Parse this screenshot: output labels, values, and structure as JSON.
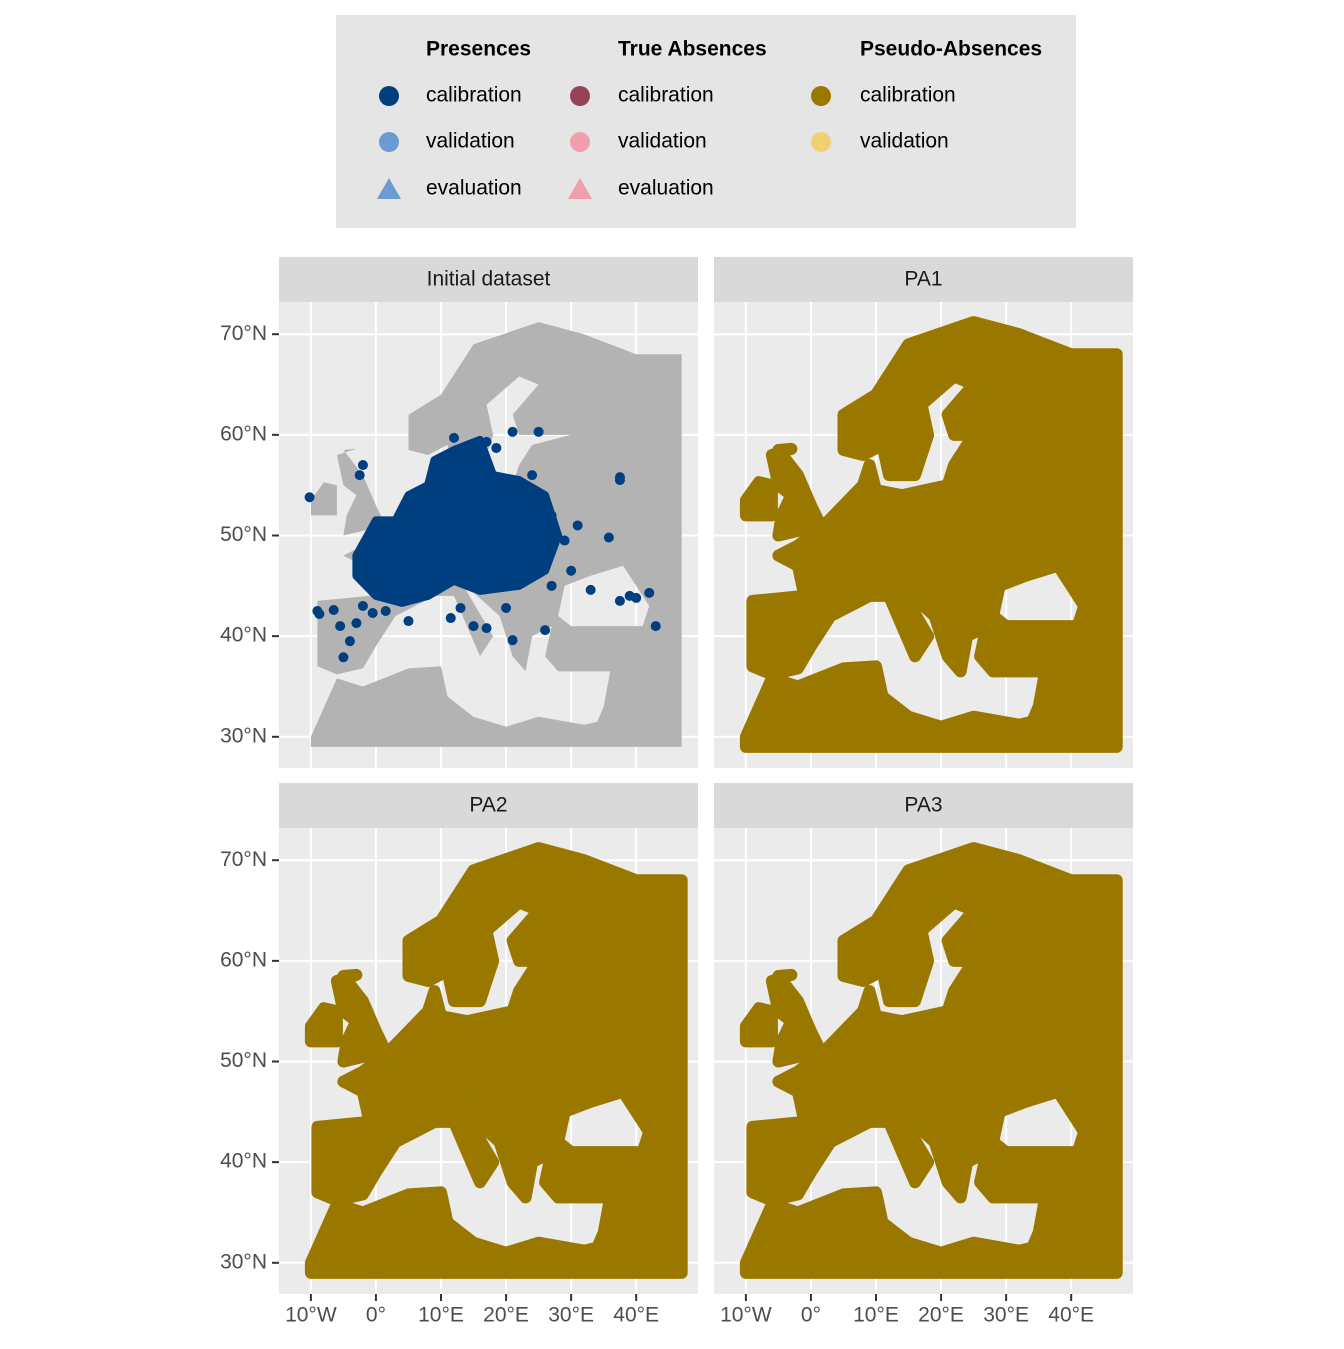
{
  "chart_data": {
    "type": "map",
    "legend": [
      {
        "title": "Presences",
        "entries": [
          {
            "label": "calibration",
            "color": "#003f7f",
            "shape": "circle"
          },
          {
            "label": "validation",
            "color": "#6b9bd1",
            "shape": "circle"
          },
          {
            "label": "evaluation",
            "color": "#6b9bd1",
            "shape": "triangle"
          }
        ]
      },
      {
        "title": "True Absences",
        "entries": [
          {
            "label": "calibration",
            "color": "#944456",
            "shape": "circle"
          },
          {
            "label": "validation",
            "color": "#f0a0ad",
            "shape": "circle"
          },
          {
            "label": "evaluation",
            "color": "#f0a0ad",
            "shape": "triangle"
          }
        ]
      },
      {
        "title": "Pseudo-Absences",
        "entries": [
          {
            "label": "calibration",
            "color": "#9a7800",
            "shape": "circle"
          },
          {
            "label": "validation",
            "color": "#f0d070",
            "shape": "circle"
          }
        ]
      }
    ],
    "panels": [
      {
        "title": "Initial dataset"
      },
      {
        "title": "PA1"
      },
      {
        "title": "PA2"
      },
      {
        "title": "PA3"
      }
    ],
    "xlim": [
      -14.9,
      49.5
    ],
    "ylim": [
      26.9,
      73.2
    ],
    "xticks": [
      {
        "value": -10,
        "label": "10°W"
      },
      {
        "value": 0,
        "label": "0°"
      },
      {
        "value": 10,
        "label": "10°E"
      },
      {
        "value": 20,
        "label": "20°E"
      },
      {
        "value": 30,
        "label": "30°E"
      },
      {
        "value": 40,
        "label": "40°E"
      }
    ],
    "yticks": [
      {
        "value": 30,
        "label": "30°N"
      },
      {
        "value": 40,
        "label": "40°N"
      },
      {
        "value": 50,
        "label": "50°N"
      },
      {
        "value": 60,
        "label": "60°N"
      },
      {
        "value": 70,
        "label": "70°N"
      }
    ],
    "presences": {
      "x": [
        -10.2,
        -9,
        -8.7,
        -6.5,
        -5.5,
        -4,
        -5,
        -3,
        -2,
        -0.5,
        1.5,
        5,
        11.5,
        13,
        15,
        17,
        20,
        21,
        26,
        27,
        30,
        33,
        37.5,
        37.5,
        35.8,
        37.5,
        39,
        40,
        42,
        43,
        29,
        31,
        27,
        24,
        21,
        12,
        17,
        25,
        18.5,
        -2,
        -2.5
      ],
      "y": [
        53.8,
        42.5,
        42.2,
        42.6,
        41,
        39.5,
        37.9,
        41.3,
        43,
        42.3,
        42.5,
        41.5,
        41.8,
        42.8,
        41,
        40.8,
        42.8,
        39.6,
        40.6,
        45,
        46.5,
        44.6,
        55.8,
        55.5,
        49.8,
        43.5,
        44,
        43.8,
        44.3,
        41,
        49.5,
        51,
        52,
        56,
        60.3,
        59.7,
        59.3,
        60.3,
        58.7,
        57,
        56
      ]
    }
  }
}
